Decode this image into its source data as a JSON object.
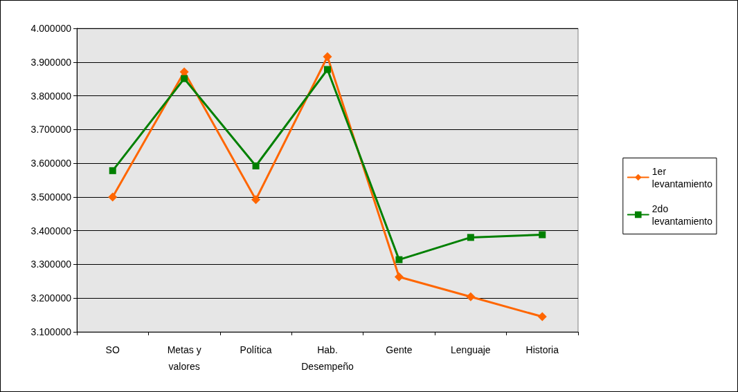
{
  "chart_data": {
    "type": "line",
    "categories": [
      "SO",
      "Metas y\nvalores",
      "Política",
      "Hab.\nDesempeño",
      "Gente",
      "Lenguaje",
      "Historia"
    ],
    "series": [
      {
        "name": "1er\nlevantamiento",
        "color": "#ff6600",
        "marker": "diamond",
        "values": [
          3.5,
          3.871,
          3.492,
          3.916,
          3.263,
          3.204,
          3.145
        ]
      },
      {
        "name": "2do\nlevantamiento",
        "color": "#008000",
        "marker": "square",
        "values": [
          3.578,
          3.851,
          3.592,
          3.878,
          3.314,
          3.38,
          3.388
        ]
      }
    ],
    "ylim": [
      3.1,
      4.0
    ],
    "yticks": [
      {
        "value": 3.1,
        "label": "3.100000"
      },
      {
        "value": 3.2,
        "label": "3.200000"
      },
      {
        "value": 3.3,
        "label": "3.300000"
      },
      {
        "value": 3.4,
        "label": "3.400000"
      },
      {
        "value": 3.5,
        "label": "3.500000"
      },
      {
        "value": 3.6,
        "label": "3.600000"
      },
      {
        "value": 3.7,
        "label": "3.700000"
      },
      {
        "value": 3.8,
        "label": "3.800000"
      },
      {
        "value": 3.9,
        "label": "3.900000"
      },
      {
        "value": 4.0,
        "label": "4.000000"
      }
    ],
    "grid": "y",
    "legend": "right",
    "line_style": "solid"
  }
}
